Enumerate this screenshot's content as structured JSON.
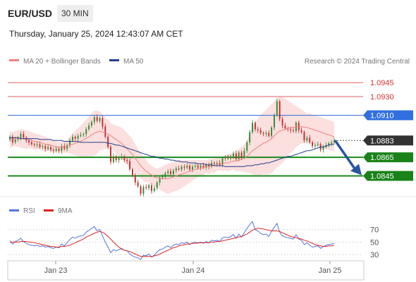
{
  "header": {
    "pair": "EUR/USD",
    "timeframe": "30 MIN",
    "datetime": "Thursday, January 25, 2024 12:43:07 AM CET"
  },
  "legend": {
    "bollinger_label": "MA 20 + Bollinger Bands",
    "ma50_label": "MA 50",
    "credit": "Research © 2024 Trading Central"
  },
  "colors": {
    "bollinger": "#f08080",
    "ma50": "#1f3f8f",
    "support": "#1a8a1a",
    "pivot": "#3a6fd8",
    "resistance": "#e06060",
    "arrow": "#2855a0",
    "rsi": "#5577dd",
    "rsi_ma": "#dd2222",
    "current": "#333333"
  },
  "chart_data": [
    {
      "type": "candlestick",
      "x_tick_labels": [
        "Jan 23",
        "Jan 24",
        "Jan 25"
      ],
      "ylim": [
        1.0822,
        1.0958
      ],
      "levels": [
        {
          "label": "1.0945",
          "value": 1.0945,
          "kind": "resistance"
        },
        {
          "label": "1.0930",
          "value": 1.093,
          "kind": "resistance"
        },
        {
          "label": "1.0910",
          "value": 1.091,
          "kind": "pivot"
        },
        {
          "label": "1.0883",
          "value": 1.0883,
          "kind": "current"
        },
        {
          "label": "1.0865",
          "value": 1.0865,
          "kind": "support"
        },
        {
          "label": "1.0845",
          "value": 1.0845,
          "kind": "support"
        }
      ],
      "forecast_arrow": {
        "from": 1.0883,
        "to": 1.0845
      },
      "close": [
        1.0887,
        1.0881,
        1.0884,
        1.0886,
        1.089,
        1.0886,
        1.0883,
        1.0881,
        1.0879,
        1.0878,
        1.0879,
        1.0876,
        1.0877,
        1.0874,
        1.0876,
        1.0873,
        1.0872,
        1.0874,
        1.0872,
        1.0877,
        1.0874,
        1.0878,
        1.0883,
        1.0887,
        1.0885,
        1.0888,
        1.0889,
        1.089,
        1.0895,
        1.0899,
        1.0903,
        1.0908,
        1.0904,
        1.0907,
        1.0898,
        1.0887,
        1.0876,
        1.086,
        1.0866,
        1.0862,
        1.0864,
        1.0866,
        1.0862,
        1.0861,
        1.0852,
        1.0846,
        1.0838,
        1.0834,
        1.0826,
        1.0833,
        1.0832,
        1.0835,
        1.0829,
        1.0832,
        1.0838,
        1.0843,
        1.0844,
        1.0848,
        1.085,
        1.0847,
        1.0851,
        1.0853,
        1.0852,
        1.0855,
        1.0854,
        1.0856,
        1.0852,
        1.0855,
        1.0856,
        1.0854,
        1.0856,
        1.0854,
        1.0857,
        1.0855,
        1.0859,
        1.0858,
        1.0859,
        1.0857,
        1.0864,
        1.0865,
        1.0864,
        1.0866,
        1.0869,
        1.0863,
        1.087,
        1.0865,
        1.0872,
        1.0881,
        1.0892,
        1.0902,
        1.0895,
        1.0894,
        1.0891,
        1.089,
        1.0891,
        1.0888,
        1.0897,
        1.091,
        1.0925,
        1.0906,
        1.0899,
        1.0896,
        1.0895,
        1.0894,
        1.0893,
        1.0902,
        1.0894,
        1.0892,
        1.0883,
        1.0886,
        1.0881,
        1.0877,
        1.0878,
        1.0879,
        1.0873,
        1.0876,
        1.0878,
        1.088,
        1.0881,
        1.0883
      ],
      "bb_upper": [
        1.0893,
        1.0892,
        1.0893,
        1.0894,
        1.0895,
        1.0895,
        1.0894,
        1.0893,
        1.0892,
        1.0891,
        1.089,
        1.0889,
        1.0888,
        1.0887,
        1.0886,
        1.0884,
        1.0883,
        1.0882,
        1.0881,
        1.0882,
        1.0882,
        1.0884,
        1.0887,
        1.089,
        1.0893,
        1.0896,
        1.0899,
        1.0902,
        1.0905,
        1.0909,
        1.0912,
        1.0915,
        1.0915,
        1.0914,
        1.0911,
        1.0908,
        1.0905,
        1.0902,
        1.09,
        1.0899,
        1.0898,
        1.0897,
        1.0894,
        1.0891,
        1.0888,
        1.0884,
        1.0879,
        1.0874,
        1.087,
        1.0866,
        1.0862,
        1.0858,
        1.0856,
        1.0854,
        1.0853,
        1.0854,
        1.0855,
        1.0857,
        1.0858,
        1.0859,
        1.086,
        1.0861,
        1.0862,
        1.0862,
        1.0862,
        1.0862,
        1.0862,
        1.0862,
        1.0862,
        1.0862,
        1.0862,
        1.0862,
        1.0862,
        1.0863,
        1.0863,
        1.0864,
        1.0864,
        1.0865,
        1.0866,
        1.0867,
        1.0868,
        1.0869,
        1.087,
        1.0872,
        1.0874,
        1.0876,
        1.0879,
        1.0883,
        1.089,
        1.0897,
        1.0902,
        1.0906,
        1.091,
        1.0913,
        1.0916,
        1.0919,
        1.0922,
        1.0925,
        1.0928,
        1.093,
        1.0929,
        1.0928,
        1.0926,
        1.0924,
        1.0922,
        1.092,
        1.0918,
        1.0916,
        1.0914,
        1.0912,
        1.0912,
        1.0911,
        1.091,
        1.0909,
        1.0908,
        1.0907,
        1.0906,
        1.0905,
        1.0904,
        1.0903
      ],
      "ma20": [
        1.0884,
        1.0884,
        1.0885,
        1.0885,
        1.0885,
        1.0885,
        1.0884,
        1.0884,
        1.0883,
        1.0882,
        1.0882,
        1.0881,
        1.088,
        1.0879,
        1.0879,
        1.0878,
        1.0877,
        1.0876,
        1.0876,
        1.0876,
        1.0876,
        1.0877,
        1.0878,
        1.0879,
        1.088,
        1.0881,
        1.0882,
        1.0884,
        1.0885,
        1.0887,
        1.0889,
        1.0891,
        1.0892,
        1.0893,
        1.0892,
        1.0891,
        1.089,
        1.0888,
        1.0886,
        1.0884,
        1.0882,
        1.088,
        1.0877,
        1.0874,
        1.0871,
        1.0868,
        1.0864,
        1.086,
        1.0856,
        1.0853,
        1.085,
        1.0848,
        1.0846,
        1.0844,
        1.0843,
        1.0842,
        1.0842,
        1.0842,
        1.0842,
        1.0843,
        1.0844,
        1.0845,
        1.0846,
        1.0847,
        1.0848,
        1.0849,
        1.085,
        1.0851,
        1.0852,
        1.0853,
        1.0853,
        1.0854,
        1.0855,
        1.0855,
        1.0856,
        1.0856,
        1.0857,
        1.0858,
        1.0858,
        1.0859,
        1.0859,
        1.086,
        1.0861,
        1.0861,
        1.0862,
        1.0863,
        1.0864,
        1.0866,
        1.0869,
        1.0872,
        1.0874,
        1.0876,
        1.0878,
        1.088,
        1.0881,
        1.0883,
        1.0885,
        1.0888,
        1.0891,
        1.0893,
        1.0894,
        1.0895,
        1.0896,
        1.0897,
        1.0897,
        1.0898,
        1.0898,
        1.0898,
        1.0897,
        1.0897,
        1.0896,
        1.0895,
        1.0894,
        1.0893,
        1.0892,
        1.0891,
        1.089,
        1.0889,
        1.0888,
        1.0887
      ],
      "bb_lower": [
        1.0875,
        1.0876,
        1.0877,
        1.0876,
        1.0875,
        1.0875,
        1.0874,
        1.0875,
        1.0874,
        1.0873,
        1.0874,
        1.0873,
        1.0872,
        1.0871,
        1.0872,
        1.0872,
        1.0871,
        1.087,
        1.0871,
        1.087,
        1.087,
        1.087,
        1.0869,
        1.0868,
        1.0867,
        1.0866,
        1.0865,
        1.0866,
        1.0865,
        1.0865,
        1.0866,
        1.0867,
        1.0869,
        1.0872,
        1.0873,
        1.0874,
        1.0875,
        1.0874,
        1.0872,
        1.0869,
        1.0866,
        1.0863,
        1.086,
        1.0857,
        1.0854,
        1.0852,
        1.0849,
        1.0846,
        1.0842,
        1.084,
        1.0838,
        1.0838,
        1.0836,
        1.0834,
        1.0833,
        1.083,
        1.0829,
        1.0827,
        1.0826,
        1.0827,
        1.0828,
        1.0829,
        1.083,
        1.0832,
        1.0834,
        1.0836,
        1.0838,
        1.084,
        1.0842,
        1.0844,
        1.0844,
        1.0846,
        1.0848,
        1.0847,
        1.0849,
        1.0848,
        1.085,
        1.0851,
        1.085,
        1.0851,
        1.085,
        1.0851,
        1.0852,
        1.085,
        1.085,
        1.085,
        1.0849,
        1.0849,
        1.0848,
        1.0847,
        1.0846,
        1.0846,
        1.0846,
        1.0847,
        1.0846,
        1.0847,
        1.0848,
        1.0851,
        1.0854,
        1.0856,
        1.0859,
        1.0862,
        1.0866,
        1.087,
        1.0872,
        1.0876,
        1.0878,
        1.088,
        1.088,
        1.0882,
        1.088,
        1.0879,
        1.0878,
        1.0877,
        1.0876,
        1.0875,
        1.0874,
        1.0873,
        1.0872,
        1.0871
      ],
      "ma50": [
        1.0886,
        1.0886,
        1.0886,
        1.0886,
        1.0885,
        1.0885,
        1.0885,
        1.0885,
        1.0885,
        1.0885,
        1.0885,
        1.0884,
        1.0884,
        1.0884,
        1.0884,
        1.0884,
        1.0883,
        1.0883,
        1.0883,
        1.0883,
        1.0882,
        1.0882,
        1.0882,
        1.0882,
        1.0882,
        1.0882,
        1.0881,
        1.0881,
        1.0881,
        1.0881,
        1.0881,
        1.0881,
        1.0881,
        1.0881,
        1.0881,
        1.0881,
        1.088,
        1.088,
        1.0879,
        1.0878,
        1.0878,
        1.0877,
        1.0876,
        1.0875,
        1.0874,
        1.0873,
        1.0872,
        1.0871,
        1.087,
        1.0869,
        1.0868,
        1.0867,
        1.0866,
        1.0866,
        1.0865,
        1.0864,
        1.0864,
        1.0863,
        1.0863,
        1.0862,
        1.0862,
        1.0861,
        1.0861,
        1.086,
        1.086,
        1.086,
        1.0859,
        1.0859,
        1.0859,
        1.0858,
        1.0858,
        1.0858,
        1.0857,
        1.0857,
        1.0857,
        1.0856,
        1.0856,
        1.0856,
        1.0856,
        1.0855,
        1.0855,
        1.0855,
        1.0855,
        1.0855,
        1.0855,
        1.0855,
        1.0855,
        1.0856,
        1.0856,
        1.0856,
        1.0857,
        1.0857,
        1.0858,
        1.0858,
        1.0859,
        1.0859,
        1.086,
        1.0861,
        1.0862,
        1.0863,
        1.0864,
        1.0865,
        1.0866,
        1.0866,
        1.0867,
        1.0868,
        1.0869,
        1.087,
        1.0871,
        1.0872,
        1.0872,
        1.0873,
        1.0874,
        1.0875,
        1.0876,
        1.0876,
        1.0877,
        1.0878,
        1.0879,
        1.0879
      ]
    },
    {
      "type": "line",
      "series": [
        {
          "name": "RSI",
          "values": [
            52,
            47,
            51,
            53,
            56,
            51,
            48,
            46,
            45,
            44,
            45,
            43,
            44,
            42,
            43,
            41,
            40,
            42,
            41,
            47,
            44,
            49,
            54,
            58,
            56,
            59,
            60,
            61,
            66,
            69,
            72,
            75,
            68,
            70,
            60,
            50,
            42,
            33,
            38,
            36,
            38,
            40,
            37,
            36,
            31,
            28,
            26,
            25,
            22,
            29,
            28,
            31,
            26,
            29,
            34,
            38,
            39,
            42,
            44,
            41,
            45,
            47,
            46,
            49,
            48,
            50,
            46,
            49,
            50,
            48,
            50,
            48,
            51,
            49,
            53,
            52,
            53,
            51,
            57,
            58,
            57,
            59,
            62,
            56,
            63,
            58,
            65,
            72,
            78,
            83,
            70,
            68,
            64,
            62,
            63,
            59,
            67,
            74,
            80,
            66,
            60,
            58,
            57,
            56,
            55,
            62,
            55,
            53,
            46,
            49,
            45,
            42,
            43,
            44,
            40,
            43,
            45,
            46,
            47,
            48
          ]
        },
        {
          "name": "9MA",
          "values": [
            50,
            50,
            50,
            50,
            51,
            51,
            51,
            50,
            50,
            49,
            48,
            47,
            46,
            45,
            44,
            43,
            43,
            42,
            42,
            43,
            43,
            44,
            45,
            47,
            49,
            51,
            53,
            55,
            58,
            60,
            62,
            64,
            66,
            67,
            66,
            63,
            59,
            55,
            50,
            46,
            42,
            39,
            37,
            36,
            35,
            33,
            31,
            29,
            27,
            27,
            27,
            27,
            27,
            28,
            29,
            31,
            33,
            35,
            37,
            39,
            41,
            42,
            44,
            45,
            46,
            47,
            47,
            48,
            48,
            49,
            49,
            49,
            49,
            49,
            50,
            50,
            51,
            51,
            52,
            53,
            54,
            55,
            56,
            57,
            58,
            59,
            61,
            63,
            66,
            69,
            71,
            72,
            72,
            71,
            70,
            69,
            68,
            68,
            68,
            67,
            65,
            63,
            61,
            59,
            58,
            57,
            56,
            55,
            53,
            52,
            50,
            48,
            46,
            45,
            44,
            43,
            43,
            44,
            44,
            45
          ]
        }
      ],
      "ylim": [
        20,
        90
      ],
      "y_ticks": [
        "70",
        "50",
        "30"
      ],
      "reference_lines": [
        70,
        50,
        30
      ]
    }
  ]
}
